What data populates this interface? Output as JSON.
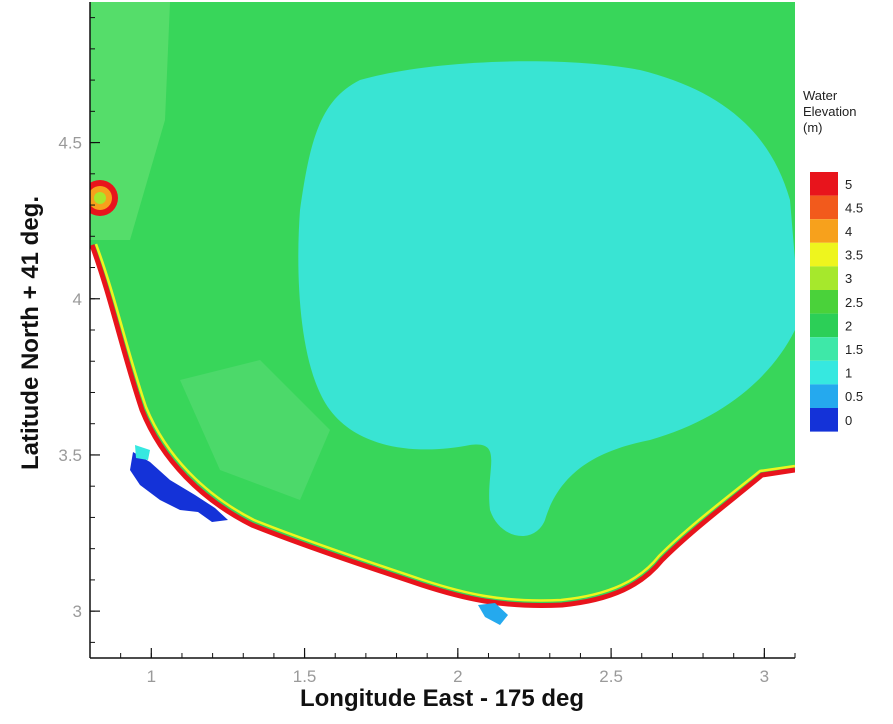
{
  "chart_data": {
    "type": "heatmap",
    "title": "",
    "xlabel": "Longitude East - 175 deg",
    "ylabel": "Latitude North + 41 deg.",
    "xlim": [
      0.8,
      3.1
    ],
    "ylim": [
      2.85,
      4.95
    ],
    "x_ticks": [
      "1",
      "1.5",
      "2",
      "2.5",
      "3"
    ],
    "y_ticks": [
      "3",
      "3.5",
      "4",
      "4.5"
    ],
    "x_tick_values": [
      1,
      1.5,
      2,
      2.5,
      3
    ],
    "y_tick_values": [
      3,
      3.5,
      4,
      4.5
    ],
    "colorbar": {
      "title_lines": [
        "Water",
        "Elevation",
        "(m)"
      ],
      "levels": [
        "5",
        "4.5",
        "4",
        "3.5",
        "3",
        "2.5",
        "2",
        "1.5",
        "1",
        "0.5",
        "0"
      ],
      "colors": [
        "#e8141c",
        "#f25a1c",
        "#f7a11c",
        "#eef51e",
        "#a6e82c",
        "#4ad23a",
        "#2ccf57",
        "#3ee8a8",
        "#36e8e0",
        "#25a9ee",
        "#1432d8"
      ]
    },
    "field_description_colors": {
      "background": "#38d65a",
      "offshore_plateau": "#39e4d3",
      "coastal_band": "#e8141c",
      "land": "#ffffff"
    },
    "legend_position": "right"
  }
}
